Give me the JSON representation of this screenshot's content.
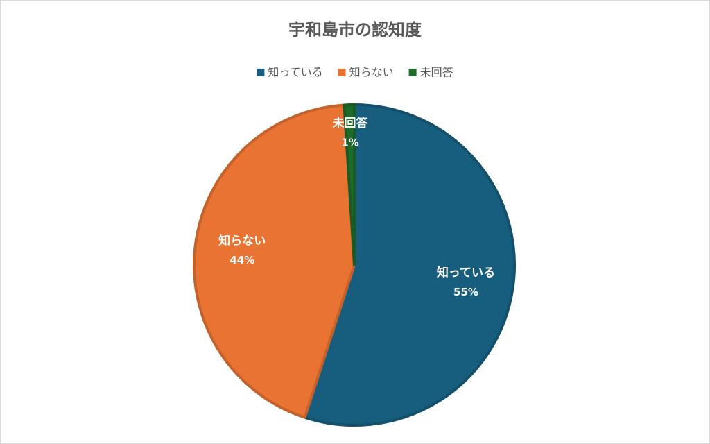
{
  "chart_data": {
    "type": "pie",
    "title": "宇和島市の認知度",
    "categories": [
      "知っている",
      "知らない",
      "未回答"
    ],
    "values": [
      55,
      44,
      1
    ],
    "value_labels": [
      "55%",
      "44%",
      "1%"
    ],
    "colors": [
      "#175e7e",
      "#e87332",
      "#1e6b2a"
    ],
    "legend": "top"
  }
}
